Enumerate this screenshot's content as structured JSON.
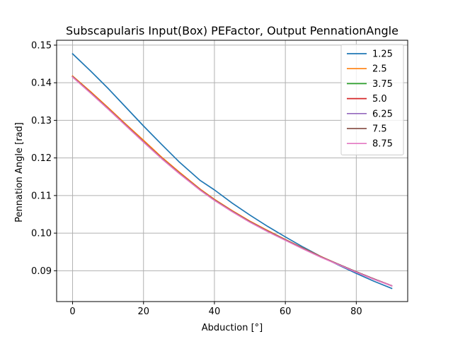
{
  "chart_data": {
    "type": "line",
    "title": "Subscapularis Input(Box) PEFactor, Output PennationAngle",
    "xlabel": "Abduction [°]",
    "ylabel": "Pennation Angle [rad]",
    "xlim": [
      -4.5,
      94.5
    ],
    "ylim": [
      0.0818,
      0.1513
    ],
    "xticks": [
      0,
      20,
      40,
      60,
      80
    ],
    "xtick_labels": [
      "0",
      "20",
      "40",
      "60",
      "80"
    ],
    "yticks": [
      0.09,
      0.1,
      0.11,
      0.12,
      0.13,
      0.14,
      0.15
    ],
    "ytick_labels": [
      "0.09",
      "0.10",
      "0.11",
      "0.12",
      "0.13",
      "0.14",
      "0.15"
    ],
    "grid": true,
    "legend_position": "top-right",
    "x": [
      0,
      5,
      10,
      15,
      20,
      25,
      30,
      36,
      40,
      45,
      50,
      55,
      60,
      65,
      70,
      75,
      80,
      85,
      90
    ],
    "series": [
      {
        "name": "1.25",
        "color": "#1f77b4",
        "values": [
          0.1477,
          0.1432,
          0.1385,
          0.1335,
          0.1285,
          0.1237,
          0.119,
          0.114,
          0.1115,
          0.108,
          0.1048,
          0.1018,
          0.099,
          0.0963,
          0.0938,
          0.0915,
          0.0893,
          0.0872,
          0.0853
        ]
      },
      {
        "name": "2.5",
        "color": "#ff7f0e",
        "values": [
          0.1418,
          0.1377,
          0.1334,
          0.129,
          0.1247,
          0.1203,
          0.1163,
          0.1117,
          0.109,
          0.106,
          0.1032,
          0.1007,
          0.0983,
          0.096,
          0.0938,
          0.0917,
          0.0897,
          0.0878,
          0.086
        ]
      },
      {
        "name": "3.75",
        "color": "#2ca02c",
        "values": [
          0.1416,
          0.1374,
          0.1331,
          0.1287,
          0.1243,
          0.12,
          0.116,
          0.1115,
          0.1088,
          0.1058,
          0.103,
          0.1005,
          0.0982,
          0.0959,
          0.0937,
          0.0917,
          0.0897,
          0.0878,
          0.086
        ]
      },
      {
        "name": "5.0",
        "color": "#d62728",
        "values": [
          0.1416,
          0.1374,
          0.1331,
          0.1287,
          0.1243,
          0.12,
          0.116,
          0.1115,
          0.1088,
          0.1058,
          0.103,
          0.1005,
          0.0982,
          0.0959,
          0.0937,
          0.0917,
          0.0897,
          0.0878,
          0.086
        ]
      },
      {
        "name": "6.25",
        "color": "#9467bd",
        "values": [
          0.1416,
          0.1374,
          0.1331,
          0.1287,
          0.1243,
          0.12,
          0.116,
          0.1115,
          0.1088,
          0.1058,
          0.103,
          0.1005,
          0.0982,
          0.0959,
          0.0937,
          0.0917,
          0.0897,
          0.0878,
          0.086
        ]
      },
      {
        "name": "7.5",
        "color": "#8c564b",
        "values": [
          0.1416,
          0.1374,
          0.1331,
          0.1287,
          0.1243,
          0.12,
          0.116,
          0.1115,
          0.1088,
          0.1058,
          0.103,
          0.1005,
          0.0982,
          0.0959,
          0.0937,
          0.0917,
          0.0897,
          0.0878,
          0.086
        ]
      },
      {
        "name": "8.75",
        "color": "#e377c2",
        "values": [
          0.1415,
          0.1373,
          0.133,
          0.1286,
          0.1242,
          0.1199,
          0.1159,
          0.1114,
          0.1087,
          0.1057,
          0.1029,
          0.1004,
          0.0981,
          0.0958,
          0.0936,
          0.0916,
          0.0896,
          0.0877,
          0.086
        ]
      }
    ]
  }
}
